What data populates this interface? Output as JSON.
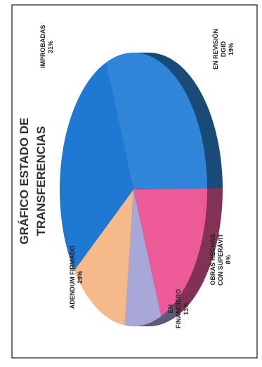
{
  "chart_data": {
    "type": "pie",
    "title": "GRÁFICO ESTADO DE TRANSFERENCIAS",
    "slices": [
      {
        "label": "IMPROBADAS",
        "value": 31,
        "display": "31%",
        "color": "#2f86d8"
      },
      {
        "label": "EN REVISIÓN DGID",
        "value": 19,
        "display": "19%",
        "color": "#ec5a98"
      },
      {
        "label": "OBRAS HECHAS CON SUPERÁVIT",
        "value": 8,
        "display": "8%",
        "color": "#a8a8d8"
      },
      {
        "label": "EN FINANCIERO",
        "value": 13,
        "display": "13%",
        "color": "#f6b98a"
      },
      {
        "label": "ADENDUM FIRMADO",
        "value": 29,
        "display": "29%",
        "color": "#1f78d1"
      }
    ],
    "legend": "none"
  },
  "labels": {
    "improbadas_name": "IMPROBADAS",
    "improbadas_pct": "31%",
    "revision_line1": "EN REVISIÓN",
    "revision_line2": "DGID",
    "revision_pct": "19%",
    "obras_line1": "OBRAS HECHAS",
    "obras_line2": "CON SUPERÁVIT",
    "obras_pct": "8%",
    "financiero_line1": "EN",
    "financiero_line2": "FINANCIERO",
    "financiero_pct": "13%",
    "adendum_name": "ADENDUM FIRMADO",
    "adendum_pct": "29%"
  }
}
